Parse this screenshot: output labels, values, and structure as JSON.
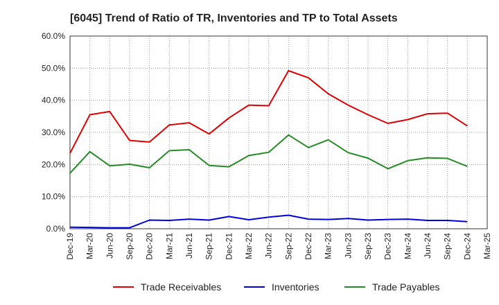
{
  "chart_data": {
    "type": "line",
    "title": "[6045]  Trend of Ratio of TR, Inventories and TP to Total Assets",
    "xlabel": "",
    "ylabel": "",
    "ylim": [
      0,
      60
    ],
    "y_ticks": [
      "0.0%",
      "10.0%",
      "20.0%",
      "30.0%",
      "40.0%",
      "50.0%",
      "60.0%"
    ],
    "x_ticks": [
      "Dec-19",
      "Mar-20",
      "Jun-20",
      "Sep-20",
      "Dec-20",
      "Mar-21",
      "Jun-21",
      "Sep-21",
      "Dec-21",
      "Mar-22",
      "Jun-22",
      "Sep-22",
      "Dec-22",
      "Mar-23",
      "Jun-23",
      "Sep-23",
      "Dec-23",
      "Mar-24",
      "Jun-24",
      "Sep-24",
      "Dec-24",
      "Mar-25"
    ],
    "x": [
      "Dec-19",
      "Mar-20",
      "Jun-20",
      "Sep-20",
      "Dec-20",
      "Mar-21",
      "Jun-21",
      "Sep-21",
      "Dec-21",
      "Mar-22",
      "Jun-22",
      "Sep-22",
      "Dec-22",
      "Mar-23",
      "Jun-23",
      "Sep-23",
      "Dec-23",
      "Mar-24",
      "Jun-24",
      "Sep-24",
      "Dec-24"
    ],
    "grid": true,
    "legend_position": "bottom",
    "series": [
      {
        "name": "Trade Receivables",
        "color": "#dd0000",
        "values": [
          23.5,
          35.5,
          36.5,
          27.5,
          27.0,
          32.3,
          33.0,
          29.5,
          34.5,
          38.5,
          38.3,
          49.2,
          47.0,
          42.0,
          38.5,
          35.5,
          32.8,
          34.0,
          35.8,
          36.0,
          32.0
        ]
      },
      {
        "name": "Inventories",
        "color": "#0000dd",
        "values": [
          0.5,
          0.4,
          0.3,
          0.3,
          2.7,
          2.6,
          3.0,
          2.7,
          3.8,
          2.8,
          3.6,
          4.2,
          3.0,
          2.9,
          3.2,
          2.7,
          2.9,
          3.0,
          2.6,
          2.6,
          2.2
        ]
      },
      {
        "name": "Trade Payables",
        "color": "#228b22",
        "values": [
          17.3,
          24.0,
          19.6,
          20.1,
          19.0,
          24.3,
          24.6,
          19.7,
          19.3,
          22.8,
          23.8,
          29.2,
          25.3,
          27.7,
          23.7,
          22.0,
          18.7,
          21.2,
          22.1,
          21.9,
          19.4
        ]
      }
    ]
  }
}
